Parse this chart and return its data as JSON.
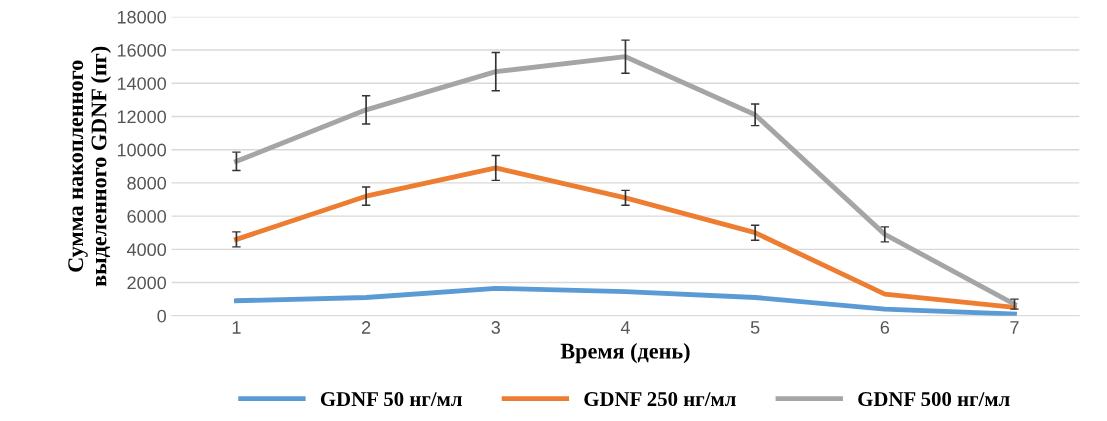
{
  "chart_data": {
    "type": "line",
    "xlabel": "Время (день)",
    "ylabel": "Сумма накопленного\nвыделенного GDNF (пг)",
    "categories": [
      "1",
      "2",
      "3",
      "4",
      "5",
      "6",
      "7"
    ],
    "series": [
      {
        "name": "GDNF 50 нг/мл",
        "color": "#5b9bd5",
        "values": [
          900,
          1100,
          1650,
          1450,
          1100,
          400,
          100
        ]
      },
      {
        "name": "GDNF 250 нг/мл",
        "color": "#ed7d31",
        "values": [
          4600,
          7200,
          8900,
          7100,
          5000,
          1300,
          500
        ],
        "errors": [
          450,
          550,
          750,
          450,
          450,
          null,
          null
        ]
      },
      {
        "name": "GDNF 500 нг/мл",
        "color": "#a5a5a5",
        "values": [
          9300,
          12400,
          14700,
          15600,
          12100,
          4900,
          700
        ],
        "errors": [
          550,
          850,
          1150,
          1000,
          650,
          450,
          300
        ]
      }
    ],
    "ylim": [
      0,
      18000
    ],
    "yticks": [
      0,
      2000,
      4000,
      6000,
      8000,
      10000,
      12000,
      14000,
      16000,
      18000
    ],
    "grid": "y",
    "legend": "bottom",
    "marker": "none",
    "line_style": "solid"
  }
}
